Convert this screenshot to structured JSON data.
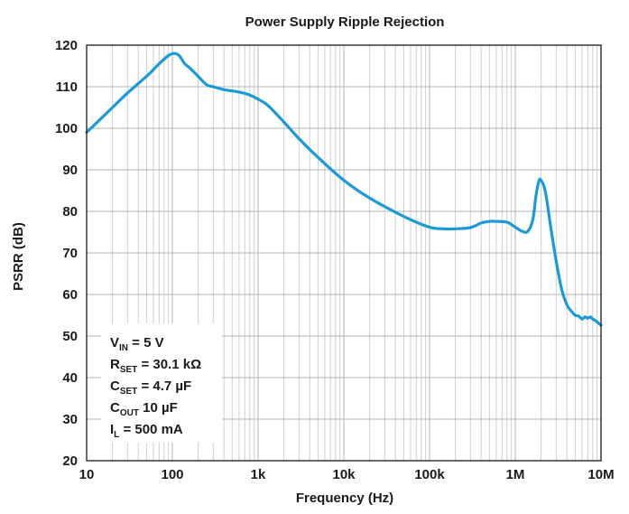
{
  "chart_data": {
    "type": "line",
    "title": "Power Supply Ripple Rejection",
    "xlabel": "Frequency (Hz)",
    "ylabel": "PSRR (dB)",
    "xscale": "log",
    "xlim": [
      10,
      10000000
    ],
    "ylim": [
      20,
      120
    ],
    "grid": true,
    "x_ticks": [
      {
        "value": 10,
        "label": "10"
      },
      {
        "value": 100,
        "label": "100"
      },
      {
        "value": 1000,
        "label": "1k"
      },
      {
        "value": 10000,
        "label": "10k"
      },
      {
        "value": 100000,
        "label": "100k"
      },
      {
        "value": 1000000,
        "label": "1M"
      },
      {
        "value": 10000000,
        "label": "10M"
      }
    ],
    "y_ticks": [
      {
        "value": 20,
        "label": "20"
      },
      {
        "value": 30,
        "label": "30"
      },
      {
        "value": 40,
        "label": "40"
      },
      {
        "value": 50,
        "label": "50"
      },
      {
        "value": 60,
        "label": "60"
      },
      {
        "value": 70,
        "label": "70"
      },
      {
        "value": 80,
        "label": "80"
      },
      {
        "value": 90,
        "label": "90"
      },
      {
        "value": 100,
        "label": "100"
      },
      {
        "value": 110,
        "label": "110"
      },
      {
        "value": 120,
        "label": "120"
      }
    ],
    "series": [
      {
        "name": "PSRR",
        "color": "#1a9ad6",
        "x": [
          10,
          20,
          30,
          50,
          70,
          90,
          105,
          120,
          140,
          160,
          200,
          250,
          300,
          400,
          600,
          800,
          1000,
          1300,
          2000,
          3000,
          5000,
          10000,
          20000,
          50000,
          100000,
          150000,
          200000,
          300000,
          400000,
          500000,
          600000,
          800000,
          1000000,
          1200000,
          1400000,
          1600000,
          1750000,
          1900000,
          2000000,
          2150000,
          2300000,
          2600000,
          3000000,
          3500000,
          4000000,
          4500000,
          5000000,
          5500000,
          6000000,
          6500000,
          7000000,
          7500000,
          8000000,
          8500000,
          9000000,
          10000000
        ],
        "y": [
          99,
          105,
          108.5,
          112.5,
          115.5,
          117.5,
          118,
          117.5,
          115.5,
          114.5,
          112.5,
          110.5,
          110,
          109.3,
          108.7,
          108,
          107,
          105.5,
          101.5,
          97.5,
          93,
          87.5,
          83.2,
          78.8,
          76.2,
          75.8,
          75.8,
          76.1,
          77.2,
          77.6,
          77.6,
          77.4,
          76.2,
          75.2,
          75.2,
          78,
          84,
          87.5,
          87.4,
          86.2,
          83.5,
          76,
          68,
          61,
          57.5,
          56,
          55,
          54.8,
          54.1,
          54.6,
          54.3,
          54.6,
          54.1,
          53.8,
          53.4,
          52.6
        ]
      }
    ],
    "annotation": {
      "lines": [
        {
          "main": "V",
          "sub": "IN",
          "rest": " = 5 V"
        },
        {
          "main": "R",
          "sub": "SET",
          "rest": " = 30.1 kΩ"
        },
        {
          "main": "C",
          "sub": "SET",
          "rest": " = 4.7 µF"
        },
        {
          "main": "C",
          "sub": "OUT",
          "rest": " 10 µF"
        },
        {
          "main": "I",
          "sub": "L",
          "rest": " = 500 mA"
        }
      ]
    }
  }
}
